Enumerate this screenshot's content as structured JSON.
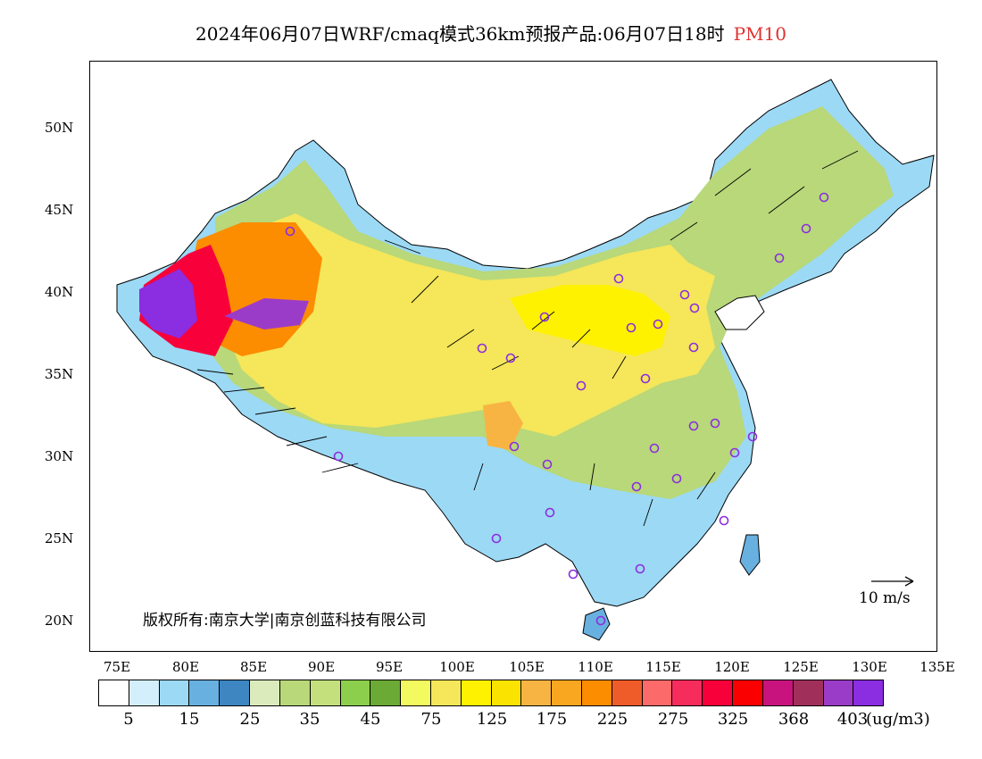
{
  "title": "2024年06月07日WRF/cmaq模式36km预报产品:06月07日18时",
  "pollutant": "PM10",
  "copyright": "版权所有:南京大学|南京创蓝科技有限公司",
  "reference_vector": "10 m/s",
  "unit": "(ug/m3)",
  "lat_labels": [
    "50N",
    "45N",
    "40N",
    "35N",
    "30N",
    "25N",
    "20N"
  ],
  "lon_labels": [
    "75E",
    "80E",
    "85E",
    "90E",
    "95E",
    "100E",
    "105E",
    "110E",
    "115E",
    "120E",
    "125E",
    "130E",
    "135E"
  ],
  "legend": {
    "colors": [
      "#ffffff",
      "#d3effb",
      "#9cd9f5",
      "#68b0e0",
      "#3d86c2",
      "#dcebbc",
      "#b8d879",
      "#c4e07c",
      "#8ccf4c",
      "#6aaa35",
      "#f2fa5f",
      "#f5e65a",
      "#fff200",
      "#fbe300",
      "#f8b443",
      "#f9a621",
      "#fc8c00",
      "#f05b2a",
      "#fd6a6a",
      "#f62d5c",
      "#f8003a",
      "#fb0000",
      "#c8137e",
      "#a0305a",
      "#9b3cc8",
      "#8b2de0"
    ],
    "labels": [
      "5",
      "15",
      "25",
      "35",
      "45",
      "75",
      "125",
      "175",
      "225",
      "275",
      "325",
      "368",
      "403"
    ]
  }
}
